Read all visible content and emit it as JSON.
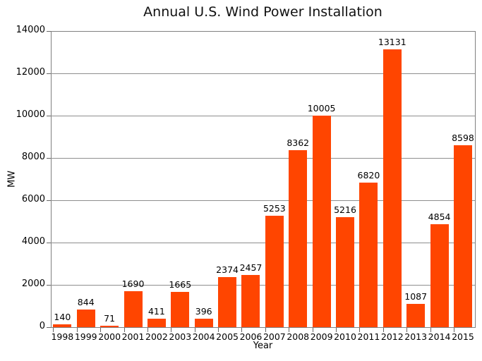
{
  "chart_data": {
    "type": "bar",
    "title": "Annual U.S. Wind Power Installation",
    "xlabel": "Year",
    "ylabel": "MW",
    "categories": [
      "1998",
      "1999",
      "2000",
      "2001",
      "2002",
      "2003",
      "2004",
      "2005",
      "2006",
      "2007",
      "2008",
      "2009",
      "2010",
      "2011",
      "2012",
      "2013",
      "2014",
      "2015"
    ],
    "values": [
      140,
      844,
      71,
      1690,
      411,
      1665,
      396,
      2374,
      2457,
      5253,
      8362,
      10005,
      5216,
      6820,
      13131,
      1087,
      4854,
      8598
    ],
    "bar_value_labels": [
      "140",
      "844",
      "71",
      "1690",
      "411",
      "1665",
      "396",
      "2374",
      "2457",
      "5253",
      "8362",
      "10005",
      "5216",
      "6820",
      "13131",
      "1087",
      "4854",
      "8598"
    ],
    "ylim": [
      0,
      14000
    ],
    "yticks": [
      0,
      2000,
      4000,
      6000,
      8000,
      10000,
      12000,
      14000
    ],
    "ytick_labels": [
      "0",
      "2000",
      "4000",
      "6000",
      "8000",
      "10000",
      "12000",
      "14000"
    ],
    "grid": "horizontal",
    "legend": "none",
    "bar_color": "#FF4500",
    "grid_color": "#8e8e8e",
    "axis_color": "#808080",
    "text_color": "#000000",
    "background": "#ffffff"
  }
}
